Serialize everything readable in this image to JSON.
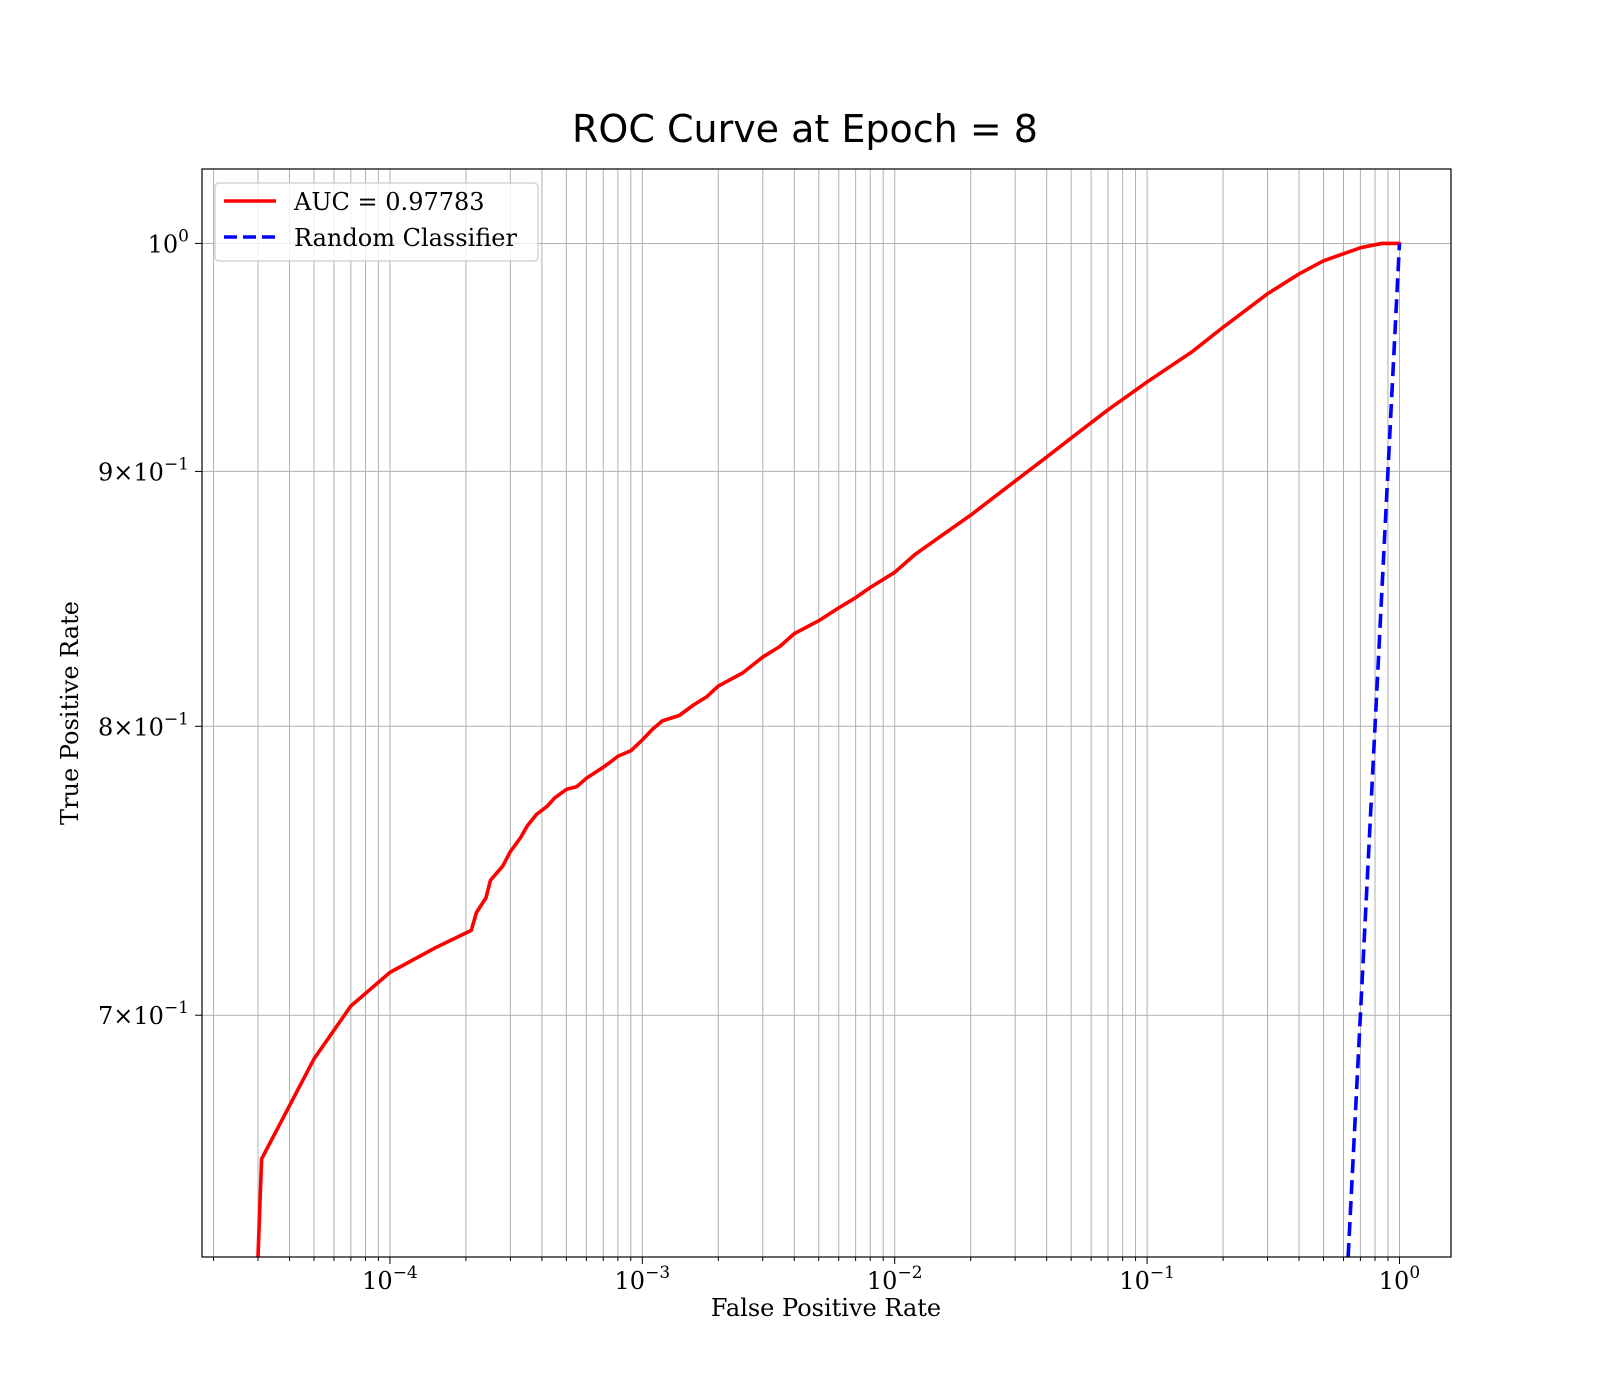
{
  "chart_data": {
    "type": "line",
    "title": "ROC Curve at Epoch = 8",
    "xlabel": "False Positive Rate",
    "ylabel": "True Positive Rate",
    "xscale": "log",
    "yscale": "log",
    "xlim": [
      1.8e-05,
      1.6
    ],
    "ylim": [
      0.626,
      1.035
    ],
    "grid": "both (major and minor)",
    "legend_position": "upper left",
    "x_ticks": [
      {
        "value": 0.0001,
        "base": "10",
        "exp": "−4"
      },
      {
        "value": 0.001,
        "base": "10",
        "exp": "−3"
      },
      {
        "value": 0.01,
        "base": "10",
        "exp": "−2"
      },
      {
        "value": 0.1,
        "base": "10",
        "exp": "−1"
      },
      {
        "value": 1,
        "base": "10",
        "exp": "0"
      }
    ],
    "y_ticks": [
      {
        "value": 1.0,
        "mant": "",
        "base": "10",
        "exp": "0"
      },
      {
        "value": 0.9,
        "mant": "9",
        "base": "10",
        "exp": "−1"
      },
      {
        "value": 0.8,
        "mant": "8",
        "base": "10",
        "exp": "−1"
      },
      {
        "value": 0.7,
        "mant": "7",
        "base": "10",
        "exp": "−1"
      }
    ],
    "series": [
      {
        "name": "AUC = 0.97783",
        "color": "#ff0000",
        "style": "solid",
        "x": [
          3e-05,
          3.1e-05,
          5e-05,
          7e-05,
          0.0001,
          0.00015,
          0.00021,
          0.00022,
          0.00024,
          0.00025,
          0.00028,
          0.0003,
          0.00033,
          0.00035,
          0.00038,
          0.00042,
          0.00045,
          0.0005,
          0.00055,
          0.0006,
          0.0007,
          0.00075,
          0.0008,
          0.0009,
          0.00095,
          0.001,
          0.0011,
          0.0012,
          0.0014,
          0.0016,
          0.0018,
          0.002,
          0.0025,
          0.003,
          0.0035,
          0.004,
          0.005,
          0.006,
          0.007,
          0.008,
          0.01,
          0.012,
          0.015,
          0.02,
          0.03,
          0.04,
          0.05,
          0.07,
          0.1,
          0.15,
          0.2,
          0.3,
          0.4,
          0.5,
          0.7,
          0.85,
          1.0
        ],
        "y": [
          0.626,
          0.655,
          0.686,
          0.703,
          0.714,
          0.722,
          0.728,
          0.734,
          0.739,
          0.745,
          0.75,
          0.755,
          0.76,
          0.764,
          0.768,
          0.771,
          0.774,
          0.777,
          0.778,
          0.781,
          0.785,
          0.787,
          0.789,
          0.791,
          0.793,
          0.795,
          0.799,
          0.802,
          0.804,
          0.808,
          0.811,
          0.815,
          0.82,
          0.826,
          0.83,
          0.835,
          0.84,
          0.845,
          0.849,
          0.853,
          0.859,
          0.866,
          0.873,
          0.882,
          0.896,
          0.906,
          0.914,
          0.926,
          0.938,
          0.951,
          0.962,
          0.977,
          0.986,
          0.992,
          0.998,
          1.0,
          1.0
        ]
      },
      {
        "name": "Random Classifier",
        "color": "#0000ff",
        "style": "dashed",
        "x": [
          0.626,
          1.0
        ],
        "y": [
          0.626,
          1.0
        ]
      }
    ]
  }
}
